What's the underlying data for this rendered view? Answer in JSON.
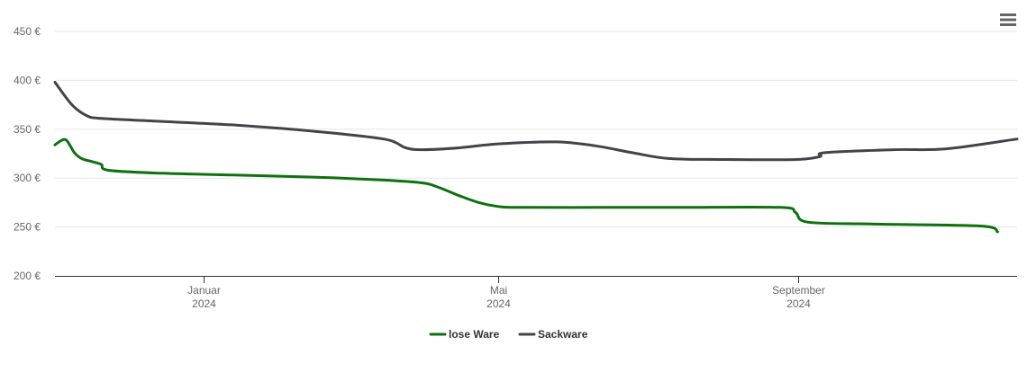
{
  "menu": {
    "icon": "hamburger-menu-icon"
  },
  "chart_data": {
    "type": "line",
    "title": "",
    "xlabel": "",
    "ylabel": "",
    "ylim": [
      200,
      450
    ],
    "xlim": [
      "2023-11-01",
      "2024-11-30"
    ],
    "grid": true,
    "legend_position": "bottom-center",
    "y_ticks": [
      {
        "value": 200,
        "label": "200 €"
      },
      {
        "value": 250,
        "label": "250 €"
      },
      {
        "value": 300,
        "label": "300 €"
      },
      {
        "value": 350,
        "label": "350 €"
      },
      {
        "value": 400,
        "label": "400 €"
      },
      {
        "value": 450,
        "label": "450 €"
      }
    ],
    "x_ticks": [
      {
        "date": "2024-01-01",
        "month": "Januar",
        "year": "2024"
      },
      {
        "date": "2024-05-01",
        "month": "Mai",
        "year": "2024"
      },
      {
        "date": "2024-09-01",
        "month": "September",
        "year": "2024"
      }
    ],
    "series": [
      {
        "name": "lose Ware",
        "color": "#107010",
        "points": [
          [
            "2023-11-01",
            334
          ],
          [
            "2023-11-04",
            339
          ],
          [
            "2023-11-06",
            338
          ],
          [
            "2023-11-09",
            326
          ],
          [
            "2023-11-12",
            320
          ],
          [
            "2023-11-16",
            317
          ],
          [
            "2023-11-20",
            314
          ],
          [
            "2023-11-23",
            308
          ],
          [
            "2023-12-15",
            305
          ],
          [
            "2024-01-15",
            303
          ],
          [
            "2024-02-15",
            301
          ],
          [
            "2024-03-15",
            298
          ],
          [
            "2024-03-31",
            295
          ],
          [
            "2024-04-06",
            291
          ],
          [
            "2024-04-15",
            282
          ],
          [
            "2024-04-23",
            275
          ],
          [
            "2024-05-01",
            271
          ],
          [
            "2024-05-10",
            270
          ],
          [
            "2024-06-15",
            270
          ],
          [
            "2024-07-15",
            270
          ],
          [
            "2024-08-25",
            270
          ],
          [
            "2024-08-31",
            265
          ],
          [
            "2024-09-05",
            255
          ],
          [
            "2024-10-01",
            253
          ],
          [
            "2024-11-15",
            251
          ],
          [
            "2024-11-22",
            245
          ]
        ]
      },
      {
        "name": "Sackware",
        "color": "#434348",
        "points": [
          [
            "2023-11-01",
            398
          ],
          [
            "2023-11-08",
            375
          ],
          [
            "2023-11-14",
            364
          ],
          [
            "2023-11-20",
            361
          ],
          [
            "2023-12-15",
            358
          ],
          [
            "2024-01-15",
            354
          ],
          [
            "2024-02-15",
            348
          ],
          [
            "2024-03-15",
            340
          ],
          [
            "2024-03-24",
            331
          ],
          [
            "2024-03-31",
            329
          ],
          [
            "2024-04-15",
            331
          ],
          [
            "2024-05-01",
            335
          ],
          [
            "2024-05-25",
            337
          ],
          [
            "2024-06-10",
            333
          ],
          [
            "2024-06-25",
            326
          ],
          [
            "2024-07-10",
            320
          ],
          [
            "2024-08-01",
            319
          ],
          [
            "2024-08-31",
            319
          ],
          [
            "2024-09-10",
            322
          ],
          [
            "2024-09-12",
            326
          ],
          [
            "2024-10-10",
            329
          ],
          [
            "2024-11-01",
            330
          ],
          [
            "2024-11-30",
            340
          ]
        ]
      }
    ]
  }
}
